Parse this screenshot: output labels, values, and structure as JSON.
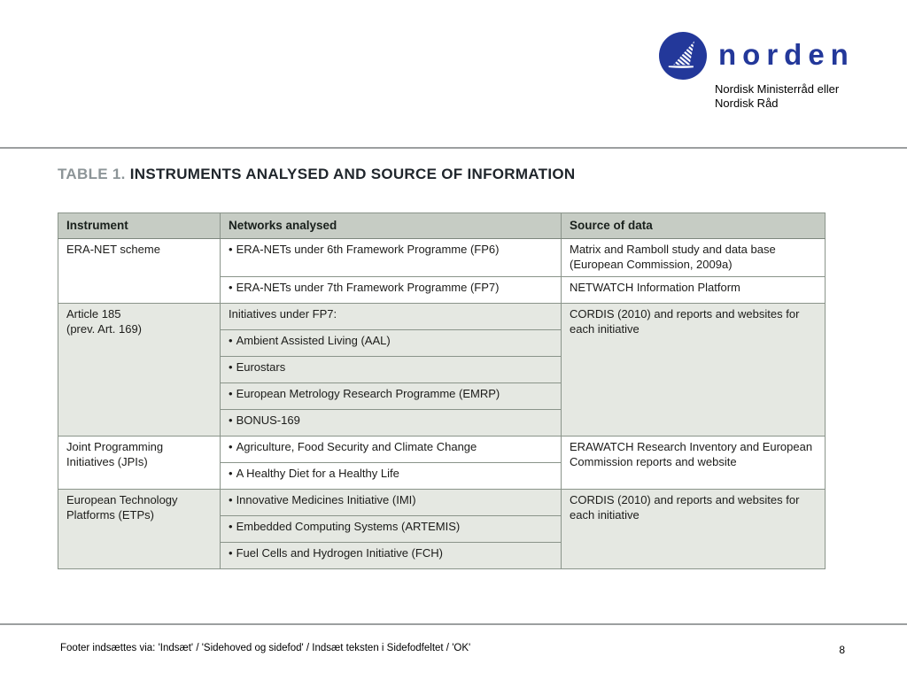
{
  "logo": {
    "icon": "swan-circle-icon",
    "brand": "norden",
    "caption_line1": "Nordisk Ministerråd eller",
    "caption_line2": "Nordisk Råd"
  },
  "title": {
    "prefix": "TABLE 1.",
    "text": "INSTRUMENTS ANALYSED AND SOURCE OF INFORMATION"
  },
  "table": {
    "headers": [
      "Instrument",
      "Networks analysed",
      "Source of data"
    ],
    "sections": [
      {
        "instrument": "ERA-NET scheme",
        "shaded": false,
        "rows": [
          {
            "network": "ERA-NETs under 6th Framework Programme (FP6)",
            "bullet": true,
            "source": "Matrix and Ramboll study and data base (European Commission, 2009a)"
          },
          {
            "network": "ERA-NETs under 7th Framework Programme (FP7)",
            "bullet": true,
            "source": "NETWATCH Information Platform"
          }
        ]
      },
      {
        "instrument": "Article 185\n(prev. Art. 169)",
        "shaded": true,
        "source": "CORDIS (2010) and reports and websites for each initiative",
        "rows": [
          {
            "network": "Initiatives under FP7:",
            "bullet": false
          },
          {
            "network": "Ambient Assisted Living (AAL)",
            "bullet": true
          },
          {
            "network": "Eurostars",
            "bullet": true
          },
          {
            "network": "European Metrology Research Programme (EMRP)",
            "bullet": true
          },
          {
            "network": "BONUS-169",
            "bullet": true
          }
        ]
      },
      {
        "instrument": "Joint Programming Initiatives (JPIs)",
        "shaded": false,
        "source": "ERAWATCH Research Inventory and European Commission reports and website",
        "rows": [
          {
            "network": "Agriculture, Food Security and Climate Change",
            "bullet": true
          },
          {
            "network": "A Healthy Diet for a Healthy Life",
            "bullet": true
          }
        ]
      },
      {
        "instrument": "European Technology Platforms (ETPs)",
        "shaded": true,
        "source": "CORDIS (2010) and reports and websites for each initiative",
        "rows": [
          {
            "network": "Innovative Medicines Initiative (IMI)",
            "bullet": true
          },
          {
            "network": "Embedded Computing Systems (ARTEMIS)",
            "bullet": true
          },
          {
            "network": "Fuel Cells and Hydrogen Initiative (FCH)",
            "bullet": true
          }
        ]
      }
    ]
  },
  "footer": {
    "text": "Footer indsættes via: 'Indsæt' / 'Sidehoved og sidefod' / Indsæt teksten i Sidefodfeltet / 'OK'",
    "page_number": "8"
  },
  "colors": {
    "logo_blue": "#23389a",
    "header_bg": "#c6ccc4",
    "shaded_row_bg": "#e5e8e2",
    "table_border": "#8a948a",
    "title_prefix_gray": "#8d9598",
    "title_text_dark": "#20262c",
    "divider_gray": "#9c9fa0"
  }
}
